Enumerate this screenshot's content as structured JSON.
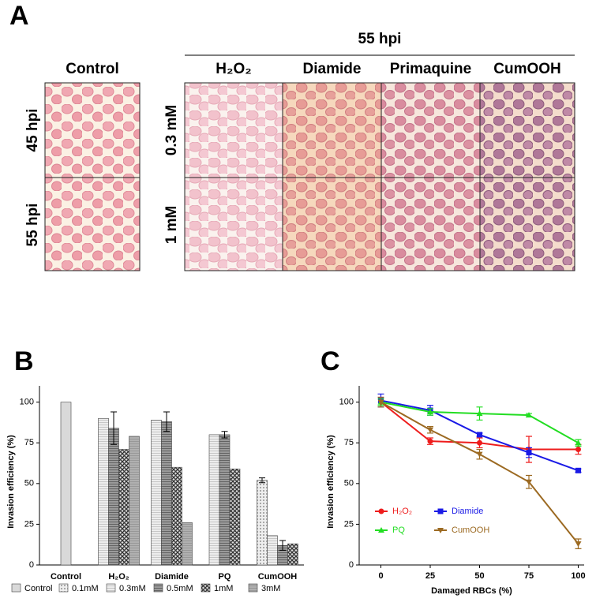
{
  "panel_a": {
    "label": "A",
    "group_title": "55 hpi",
    "control_title": "Control",
    "columns": [
      "H₂O₂",
      "Diamide",
      "Primaquine",
      "CumOOH"
    ],
    "control_rows": [
      "45 hpi",
      "55 hpi"
    ],
    "rows": [
      "0.3 mM",
      "1 mM"
    ]
  },
  "chart_data": [
    {
      "type": "bar",
      "panel_label": "B",
      "y_label": "Invasion efficiency (%)",
      "categories": [
        "Control",
        "H₂O₂",
        "Diamide",
        "PQ",
        "CumOOH"
      ],
      "series": [
        {
          "name": "Control",
          "color": "#d9d9d9",
          "values": [
            100,
            null,
            null,
            null,
            null
          ],
          "errors": [
            null,
            null,
            null,
            null,
            null
          ]
        },
        {
          "name": "0.1mM",
          "color": "#cfcfcf",
          "values": [
            null,
            null,
            null,
            null,
            52
          ],
          "errors": [
            null,
            null,
            null,
            null,
            1.5
          ]
        },
        {
          "name": "0.3mM",
          "color": "#e4e4e4",
          "values": [
            null,
            90,
            89,
            80,
            18
          ],
          "errors": [
            null,
            null,
            null,
            null,
            null
          ]
        },
        {
          "name": "0.5mM",
          "color": "#8c8c8c",
          "values": [
            null,
            84,
            88,
            80,
            12
          ],
          "errors": [
            null,
            10,
            6,
            2,
            3
          ]
        },
        {
          "name": "1mM",
          "color": "#555555",
          "values": [
            null,
            71,
            60,
            59,
            13
          ],
          "errors": [
            null,
            null,
            null,
            null,
            null
          ]
        },
        {
          "name": "3mM",
          "color": "#a6a6a6",
          "values": [
            null,
            79,
            26,
            null,
            null
          ],
          "errors": [
            null,
            null,
            null,
            null,
            null
          ]
        }
      ],
      "ylim": [
        0,
        110
      ],
      "yticks": [
        0,
        25,
        50,
        75,
        100
      ]
    },
    {
      "type": "line",
      "panel_label": "C",
      "y_label": "Invasion efficiency (%)",
      "x_label": "Damaged RBCs (%)",
      "x": [
        0,
        25,
        50,
        75,
        100
      ],
      "series": [
        {
          "name": "H₂O₂",
          "color": "#ee1c1c",
          "values": [
            100,
            76,
            75,
            71,
            71
          ],
          "errors": [
            3,
            2,
            3,
            8,
            3
          ]
        },
        {
          "name": "Diamide",
          "color": "#1a1ae6",
          "values": [
            101,
            95,
            80,
            69,
            58
          ],
          "errors": [
            4,
            3,
            1,
            3,
            1
          ]
        },
        {
          "name": "PQ",
          "color": "#22dd22",
          "values": [
            100,
            94,
            93,
            92,
            75
          ],
          "errors": [
            2,
            2,
            4,
            1,
            2
          ]
        },
        {
          "name": "CumOOH",
          "color": "#9c6a22",
          "values": [
            100,
            83,
            68,
            51,
            13
          ],
          "errors": [
            3,
            2,
            3,
            4,
            3
          ]
        }
      ],
      "xlim": [
        -11,
        103
      ],
      "xticks": [
        0,
        25,
        50,
        75,
        100
      ],
      "ylim": [
        0,
        110
      ],
      "yticks": [
        0,
        25,
        50,
        75,
        100
      ]
    }
  ]
}
